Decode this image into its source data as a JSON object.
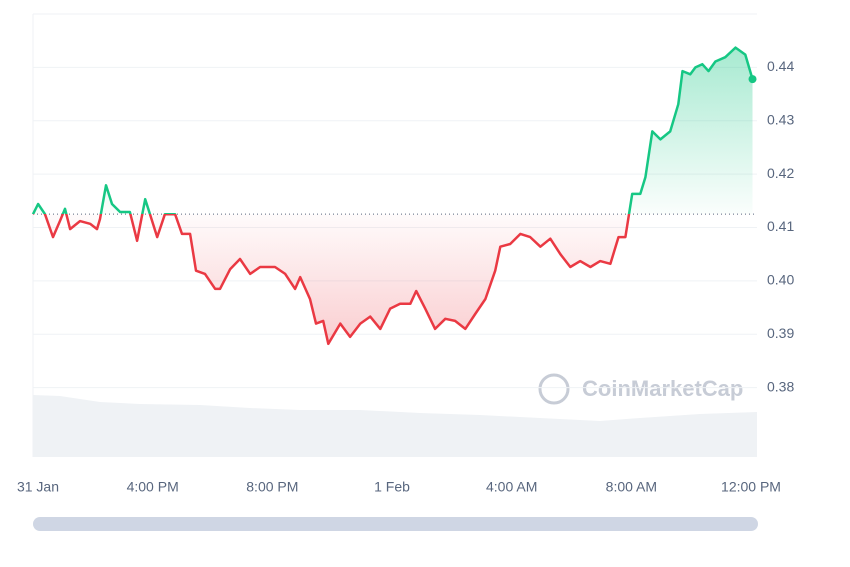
{
  "chart_data": {
    "type": "line",
    "x": [
      0,
      0.17,
      0.4,
      0.67,
      0.9,
      1.07,
      1.24,
      1.57,
      1.91,
      2.14,
      2.24,
      2.44,
      2.64,
      2.91,
      3.24,
      3.48,
      3.75,
      3.91,
      4.15,
      4.41,
      4.75,
      4.98,
      5.25,
      5.45,
      5.75,
      6.09,
      6.25,
      6.59,
      6.92,
      7.26,
      7.59,
      8.09,
      8.43,
      8.76,
      8.93,
      9.26,
      9.46,
      9.7,
      9.87,
      10.27,
      10.6,
      10.94,
      11.27,
      11.61,
      11.94,
      12.27,
      12.61,
      12.81,
      13.11,
      13.44,
      13.78,
      14.11,
      14.45,
      14.78,
      15.12,
      15.45,
      15.62,
      15.95,
      16.29,
      16.62,
      16.96,
      17.29,
      17.63,
      17.96,
      18.29,
      18.63,
      18.96,
      19.3,
      19.57,
      19.8,
      20.03,
      20.3,
      20.47,
      20.7,
      20.97,
      21.3,
      21.57,
      21.71,
      21.97,
      22.14,
      22.37,
      22.58,
      22.81,
      23.14,
      23.48,
      23.81,
      24.05
    ],
    "values": [
      0.4125,
      0.4144,
      0.4125,
      0.4082,
      0.4112,
      0.4135,
      0.4097,
      0.4112,
      0.4107,
      0.4097,
      0.4116,
      0.4179,
      0.4144,
      0.4129,
      0.4129,
      0.4075,
      0.4153,
      0.4125,
      0.4082,
      0.4125,
      0.4125,
      0.4088,
      0.4088,
      0.4019,
      0.4013,
      0.3985,
      0.3985,
      0.4022,
      0.4041,
      0.4013,
      0.4026,
      0.4026,
      0.4013,
      0.3985,
      0.4007,
      0.3966,
      0.392,
      0.3925,
      0.3882,
      0.392,
      0.3895,
      0.392,
      0.3933,
      0.391,
      0.3948,
      0.3957,
      0.3957,
      0.3981,
      0.3948,
      0.391,
      0.3929,
      0.3925,
      0.391,
      0.3938,
      0.3966,
      0.4019,
      0.4064,
      0.4069,
      0.4088,
      0.4082,
      0.4064,
      0.4079,
      0.405,
      0.4026,
      0.4037,
      0.4026,
      0.4037,
      0.4032,
      0.4082,
      0.4082,
      0.4163,
      0.4163,
      0.4194,
      0.428,
      0.4265,
      0.428,
      0.4331,
      0.4393,
      0.4387,
      0.44,
      0.4406,
      0.4393,
      0.4411,
      0.4419,
      0.4437,
      0.4424,
      0.4378
    ],
    "baseline": 0.4125,
    "up_color": "#16c784",
    "down_color": "#ea3943",
    "xlim": [
      0,
      24.2
    ],
    "xticks": [
      {
        "value": 0,
        "label": "31 Jan"
      },
      {
        "value": 4,
        "label": "4:00 PM"
      },
      {
        "value": 8,
        "label": "8:00 PM"
      },
      {
        "value": 12,
        "label": "1 Feb"
      },
      {
        "value": 16,
        "label": "4:00 AM"
      },
      {
        "value": 20,
        "label": "8:00 AM"
      },
      {
        "value": 24,
        "label": "12:00 PM"
      }
    ],
    "ylim": [
      0.367,
      0.45
    ],
    "yticks": [
      0.38,
      0.39,
      {
        "value": 0.4,
        "label": "0.40"
      },
      0.41,
      0.42,
      0.43,
      0.44
    ],
    "grid": true,
    "watermark": "CoinMarketCap"
  }
}
